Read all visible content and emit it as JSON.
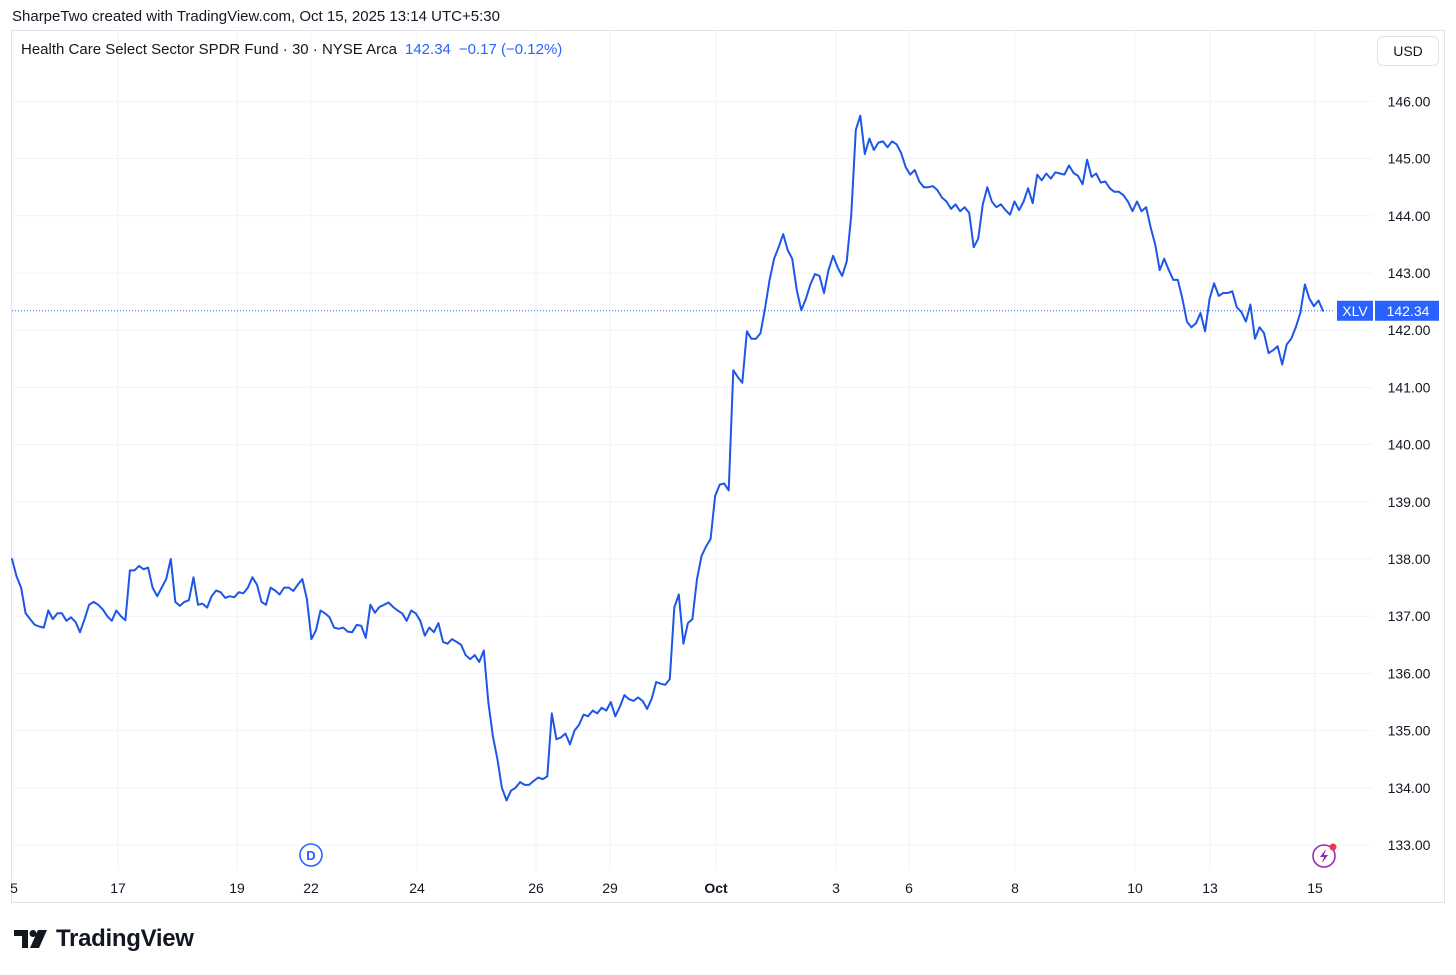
{
  "caption": "SharpeTwo created with TradingView.com, Oct 15, 2025 13:14 UTC+5:30",
  "legend": {
    "symbol_text": "Health Care Select Sector SPDR Fund · 30 · NYSE Arca",
    "price": "142.34",
    "change": "−0.17 (−0.12%)"
  },
  "currency_button": "USD",
  "price_tag": {
    "ticker": "XLV",
    "value": "142.34"
  },
  "markers": {
    "dividend": "D"
  },
  "footer": {
    "brand": "TradingView"
  },
  "colors": {
    "line": "#1e56e8",
    "accent": "#2962ff",
    "grid": "#f0f3fa",
    "marker_purple": "#9c27b0",
    "marker_dot": "#f23645"
  },
  "icons": [
    "dividend-marker-icon",
    "lightning-event-icon",
    "tradingview-logo-icon"
  ],
  "chart_data": {
    "type": "line",
    "series": [
      {
        "name": "XLV",
        "values": [
          138.0,
          137.7,
          137.5,
          137.05,
          136.95,
          136.85,
          136.82,
          136.8,
          137.1,
          136.95,
          137.05,
          137.05,
          136.92,
          136.98,
          136.9,
          136.72,
          136.95,
          137.2,
          137.25,
          137.2,
          137.12,
          137.0,
          136.92,
          137.1,
          137.0,
          136.93,
          137.8,
          137.8,
          137.88,
          137.82,
          137.85,
          137.5,
          137.35,
          137.5,
          137.65,
          138.0,
          137.25,
          137.18,
          137.25,
          137.28,
          137.68,
          137.2,
          137.22,
          137.15,
          137.35,
          137.45,
          137.42,
          137.32,
          137.35,
          137.33,
          137.42,
          137.4,
          137.5,
          137.68,
          137.55,
          137.25,
          137.2,
          137.5,
          137.45,
          137.38,
          137.5,
          137.5,
          137.44,
          137.55,
          137.65,
          137.3,
          136.6,
          136.75,
          137.1,
          137.05,
          136.98,
          136.8,
          136.78,
          136.8,
          136.73,
          136.72,
          136.85,
          136.83,
          136.62,
          137.2,
          137.06,
          137.16,
          137.2,
          137.24,
          137.16,
          137.1,
          137.05,
          136.92,
          137.1,
          137.05,
          136.92,
          136.66,
          136.8,
          136.72,
          136.88,
          136.55,
          136.52,
          136.6,
          136.55,
          136.5,
          136.32,
          136.25,
          136.32,
          136.2,
          136.4,
          135.5,
          134.9,
          134.5,
          134.0,
          133.78,
          133.95,
          134.0,
          134.1,
          134.05,
          134.05,
          134.12,
          134.18,
          134.15,
          134.2,
          135.3,
          134.85,
          134.88,
          134.95,
          134.76,
          135.0,
          135.1,
          135.28,
          135.25,
          135.35,
          135.3,
          135.4,
          135.35,
          135.5,
          135.25,
          135.42,
          135.62,
          135.55,
          135.52,
          135.58,
          135.52,
          135.38,
          135.55,
          135.85,
          135.82,
          135.8,
          135.9,
          137.15,
          137.38,
          136.52,
          136.88,
          136.95,
          137.65,
          138.05,
          138.22,
          138.35,
          139.1,
          139.3,
          139.32,
          139.2,
          141.3,
          141.18,
          141.08,
          141.98,
          141.85,
          141.85,
          141.95,
          142.38,
          142.88,
          143.25,
          143.45,
          143.68,
          143.4,
          143.25,
          142.7,
          142.35,
          142.55,
          142.8,
          142.98,
          142.95,
          142.65,
          143.05,
          143.3,
          143.1,
          142.95,
          143.2,
          144.0,
          145.5,
          145.75,
          145.08,
          145.35,
          145.15,
          145.28,
          145.3,
          145.2,
          145.3,
          145.25,
          145.1,
          144.85,
          144.72,
          144.8,
          144.6,
          144.5,
          144.5,
          144.52,
          144.45,
          144.32,
          144.25,
          144.12,
          144.2,
          144.08,
          144.15,
          144.05,
          143.45,
          143.6,
          144.2,
          144.5,
          144.25,
          144.15,
          144.2,
          144.1,
          144.02,
          144.25,
          144.1,
          144.25,
          144.48,
          144.22,
          144.72,
          144.62,
          144.74,
          144.65,
          144.76,
          144.74,
          144.72,
          144.88,
          144.75,
          144.7,
          144.55,
          144.98,
          144.68,
          144.74,
          144.58,
          144.6,
          144.48,
          144.42,
          144.42,
          144.36,
          144.25,
          144.08,
          144.25,
          144.08,
          144.15,
          143.8,
          143.5,
          143.05,
          143.25,
          143.05,
          142.88,
          142.88,
          142.55,
          142.15,
          142.05,
          142.12,
          142.3,
          141.98,
          142.55,
          142.82,
          142.6,
          142.65,
          142.65,
          142.68,
          142.4,
          142.32,
          142.15,
          142.45,
          141.85,
          142.05,
          141.95,
          141.6,
          141.65,
          141.72,
          141.4,
          141.75,
          141.85,
          142.05,
          142.3,
          142.8,
          142.55,
          142.42,
          142.52,
          142.34
        ]
      }
    ],
    "x_tick_labels": [
      "5",
      "17",
      "19",
      "22",
      "24",
      "26",
      "29",
      "Oct",
      "3",
      "6",
      "8",
      "10",
      "13",
      "15"
    ],
    "y_tick_labels": [
      "133.00",
      "134.00",
      "135.00",
      "136.00",
      "137.00",
      "138.00",
      "139.00",
      "140.00",
      "141.00",
      "142.00",
      "143.00",
      "144.00",
      "145.00",
      "146.00"
    ],
    "last_price": 142.34,
    "ylim": [
      132.5,
      146.6
    ],
    "grid": true,
    "legend_position": "top-left"
  }
}
